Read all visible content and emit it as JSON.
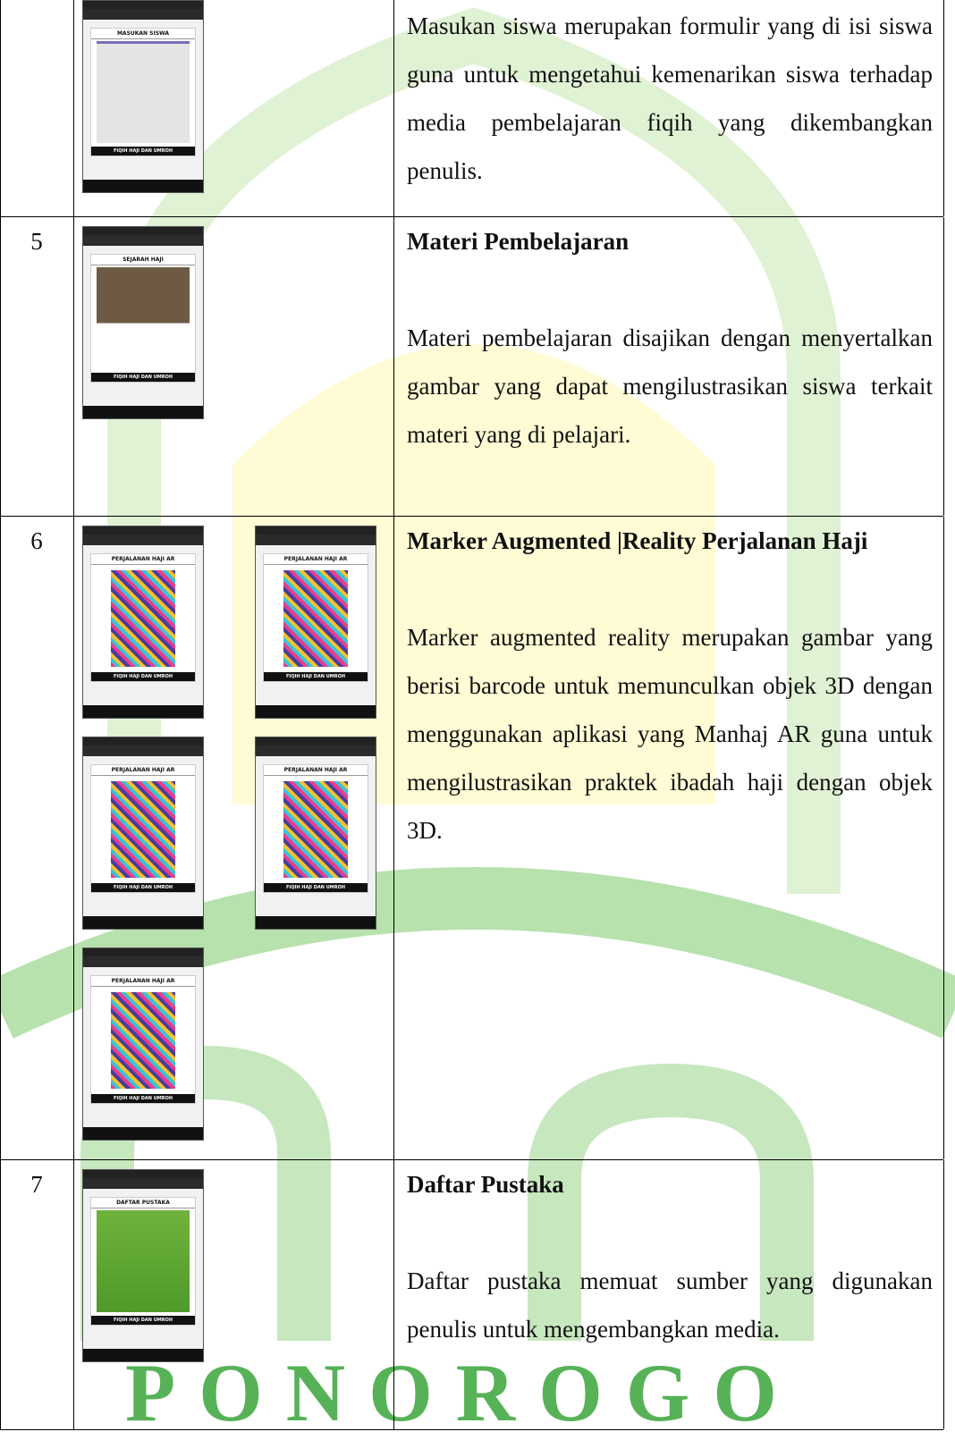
{
  "table": {
    "rows": [
      {
        "screenshots": [
          {
            "header": "MASUKAN SISWA",
            "footer": "FIQIH HAJI DAN UMROH"
          }
        ],
        "text": "Masukan siswa merupakan formulir yang di isi siswa guna untuk mengetahui kemenarikan siswa terhadap media pembelajaran fiqih yang dikembangkan penulis."
      },
      {
        "number": "5",
        "screenshots": [
          {
            "header": "SEJARAH HAJI",
            "footer": "FIQIH HAJI DAN UMROH"
          }
        ],
        "heading": "Materi Pembelajaran",
        "text": "Materi pembelajaran disajikan dengan menyertalkan gambar yang dapat mengilustrasikan siswa terkait materi yang di pelajari."
      },
      {
        "number": "6",
        "screenshots": [
          {
            "header": "PERJALANAN HAJI AR",
            "footer": "FIQIH HAJI DAN UMROH"
          },
          {
            "header": "PERJALANAN HAJI AR",
            "footer": "FIQIH HAJI DAN UMROH"
          },
          {
            "header": "PERJALANAN HAJI AR",
            "footer": "FIQIH HAJI DAN UMROH"
          },
          {
            "header": "PERJALANAN HAJI AR",
            "footer": "FIQIH HAJI DAN UMROH"
          },
          {
            "header": "PERJALANAN HAJI AR",
            "footer": "FIQIH HAJI DAN UMROH"
          }
        ],
        "heading": "Marker Augmented |Reality Perjalanan Haji",
        "text": "Marker augmented reality merupakan gambar yang berisi barcode untuk memunculkan objek 3D dengan menggunakan aplikasi yang Manhaj AR guna untuk mengilustrasikan praktek ibadah haji dengan objek 3D."
      },
      {
        "number": "7",
        "screenshots": [
          {
            "header": "DAFTAR PUSTAKA",
            "footer": "FIQIH HAJI DAN UMROH"
          }
        ],
        "heading": "Daftar Pustaka",
        "text": "Daftar pustaka memuat sumber yang digunakan penulis untuk mengembangkan media."
      }
    ]
  },
  "watermark": "PONOROGO"
}
